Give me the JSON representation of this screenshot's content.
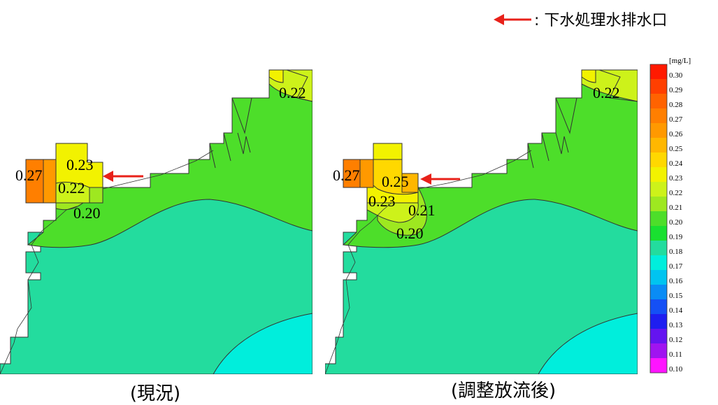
{
  "legend_note": {
    "text": ": 下水処理水排水口",
    "arrow_color": "#e8211a"
  },
  "colorbar": {
    "unit": "[mg/L]",
    "ticks": [
      "0.30",
      "0.29",
      "0.28",
      "0.27",
      "0.26",
      "0.25",
      "0.24",
      "0.23",
      "0.22",
      "0.21",
      "0.20",
      "0.19",
      "0.18",
      "0.17",
      "0.16",
      "0.15",
      "0.14",
      "0.13",
      "0.12",
      "0.11",
      "0.10"
    ],
    "colors": [
      "#ff1a00",
      "#ff3f00",
      "#ff6300",
      "#ff7f00",
      "#ff9900",
      "#ffb700",
      "#ffd800",
      "#f2f200",
      "#cdf21a",
      "#9ee820",
      "#4dde2a",
      "#19e030",
      "#23dc9e",
      "#00eedc",
      "#00c4f0",
      "#0a8cf5",
      "#1450f5",
      "#1e1ef0",
      "#6414f0",
      "#a014f0",
      "#ff14ff"
    ]
  },
  "maps": [
    {
      "caption": "(現況)",
      "labels": [
        {
          "text": "0.22"
        },
        {
          "text": "0.23"
        },
        {
          "text": "0.27"
        },
        {
          "text": "0.22"
        },
        {
          "text": "0.20"
        }
      ]
    },
    {
      "caption": "(調整放流後)",
      "labels": [
        {
          "text": "0.22"
        },
        {
          "text": "0.27"
        },
        {
          "text": "0.25"
        },
        {
          "text": "0.23"
        },
        {
          "text": "0.21"
        },
        {
          "text": "0.20"
        }
      ]
    }
  ]
}
